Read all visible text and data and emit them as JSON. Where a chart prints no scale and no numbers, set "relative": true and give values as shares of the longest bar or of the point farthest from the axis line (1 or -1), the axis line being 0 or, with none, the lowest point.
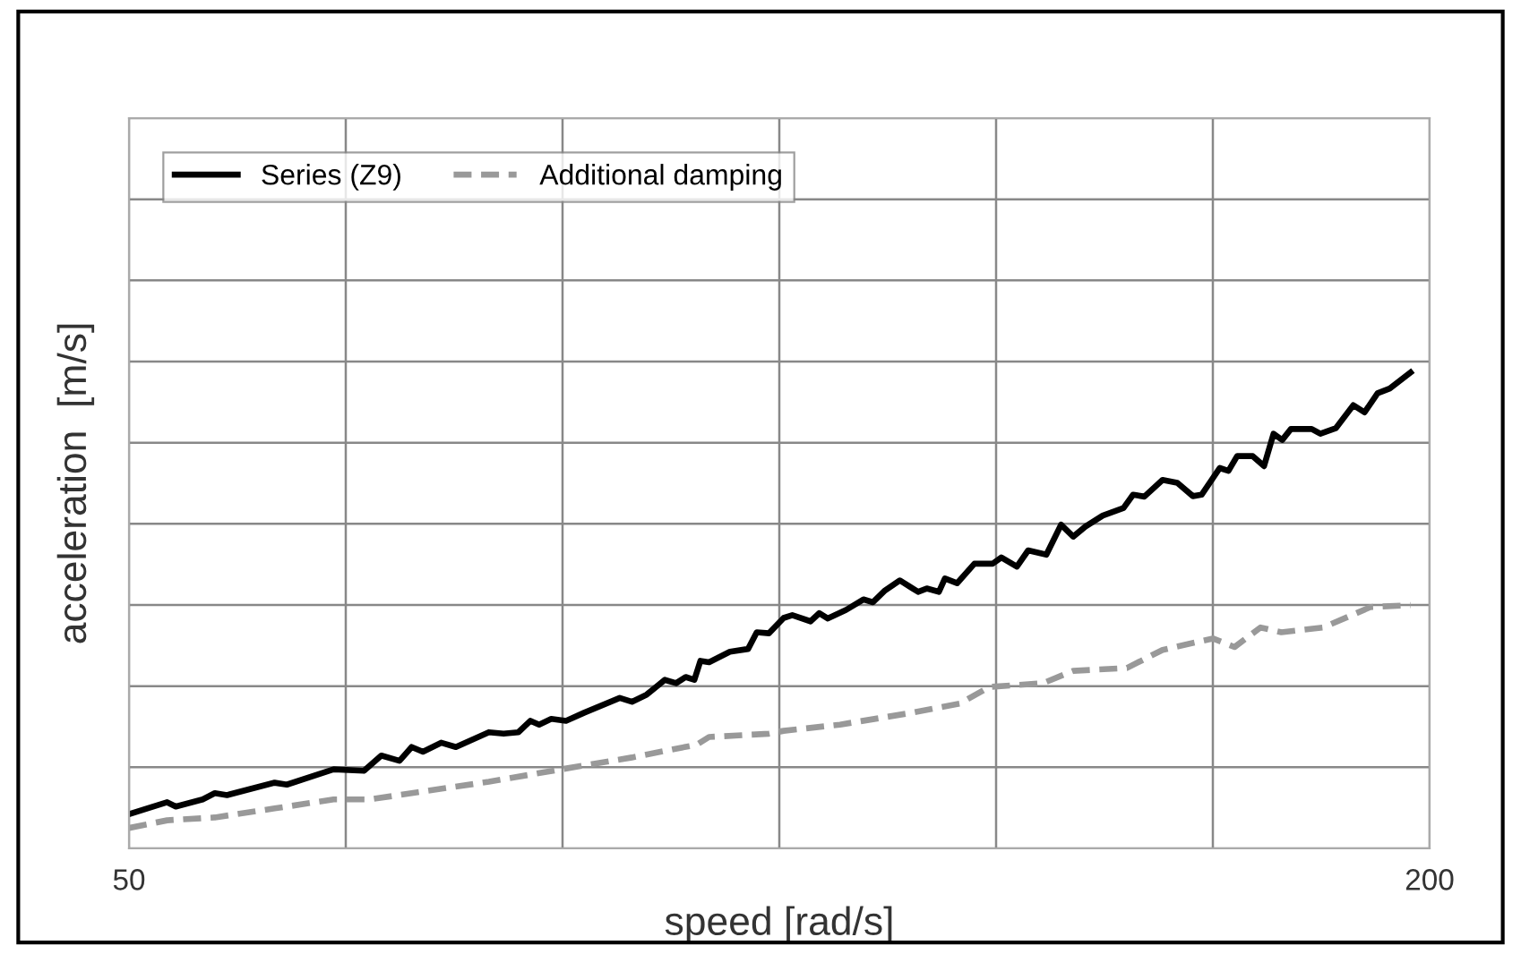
{
  "chart_data": {
    "type": "line",
    "xlabel": "speed [rad/s]",
    "ylabel": "acceleration  [m/s]",
    "relative": true,
    "xlim": [
      50,
      200
    ],
    "xticks": [
      50,
      {
        "value": 75,
        "label": null
      },
      {
        "value": 100,
        "label": null
      },
      {
        "value": 125,
        "label": null
      },
      {
        "value": 150,
        "label": null
      },
      {
        "value": 175,
        "label": null
      },
      200
    ],
    "grid": true,
    "legend": "top left",
    "tick_labels": "x",
    "series": [
      {
        "name": "Series (Z9)",
        "color": "#000000",
        "line_style": "solid",
        "x": [
          50,
          54.4,
          55.4,
          58.5,
          59.9,
          61.3,
          66.8,
          68.2,
          73.6,
          77.1,
          79.1,
          81.2,
          82.6,
          83.9,
          86,
          87.7,
          91.5,
          93.2,
          94.9,
          96.3,
          97.3,
          98.7,
          100.4,
          102.5,
          106.6,
          108,
          109.7,
          111.8,
          113.1,
          114.2,
          115.2,
          115.9,
          116.9,
          119.3,
          121.4,
          122.4,
          123.8,
          125.5,
          126.5,
          128.6,
          129.6,
          130.6,
          132.7,
          134.7,
          135.8,
          137.2,
          138.9,
          141,
          142,
          143.4,
          144.1,
          145.5,
          147.5,
          149.6,
          150.6,
          152.4,
          153.7,
          155.8,
          157.5,
          158.9,
          160.3,
          162.3,
          164.7,
          165.8,
          167.1,
          169.2,
          170.9,
          172.7,
          173.7,
          175.8,
          176.8,
          177.8,
          179.6,
          180.9,
          182,
          183,
          184,
          186.4,
          187.4,
          189.2,
          191.2,
          192.5,
          194,
          195.4,
          197.8
        ],
        "values": [
          0.072,
          0.097,
          0.088,
          0.103,
          0.116,
          0.112,
          0.138,
          0.134,
          0.166,
          0.163,
          0.195,
          0.184,
          0.213,
          0.203,
          0.222,
          0.213,
          0.244,
          0.241,
          0.244,
          0.268,
          0.26,
          0.272,
          0.268,
          0.285,
          0.316,
          0.308,
          0.323,
          0.354,
          0.347,
          0.36,
          0.354,
          0.394,
          0.391,
          0.413,
          0.419,
          0.454,
          0.452,
          0.484,
          0.49,
          0.477,
          0.494,
          0.483,
          0.501,
          0.523,
          0.517,
          0.542,
          0.563,
          0.539,
          0.546,
          0.539,
          0.567,
          0.557,
          0.598,
          0.598,
          0.611,
          0.592,
          0.626,
          0.617,
          0.68,
          0.655,
          0.676,
          0.699,
          0.715,
          0.743,
          0.739,
          0.774,
          0.768,
          0.74,
          0.743,
          0.799,
          0.793,
          0.824,
          0.824,
          0.803,
          0.871,
          0.858,
          0.881,
          0.881,
          0.871,
          0.883,
          0.931,
          0.916,
          0.956,
          0.966,
          1
        ]
      },
      {
        "name": "Additional damping",
        "color": "#999999",
        "line_style": "dashed",
        "x": [
          50,
          54.4,
          59.9,
          66.8,
          73.6,
          77.8,
          83.3,
          91.5,
          99.8,
          108,
          115.5,
          116.9,
          123.8,
          125.5,
          132,
          140.3,
          143.7,
          145.8,
          149.2,
          155.4,
          158.9,
          165.1,
          169.2,
          175,
          177.5,
          180.5,
          182.9,
          187.7,
          193.2,
          197.8
        ],
        "values": [
          0.043,
          0.059,
          0.065,
          0.084,
          0.103,
          0.103,
          0.118,
          0.14,
          0.166,
          0.191,
          0.218,
          0.234,
          0.241,
          0.247,
          0.26,
          0.285,
          0.297,
          0.304,
          0.339,
          0.347,
          0.373,
          0.379,
          0.417,
          0.441,
          0.423,
          0.464,
          0.454,
          0.464,
          0.507,
          0.511
        ]
      }
    ]
  }
}
